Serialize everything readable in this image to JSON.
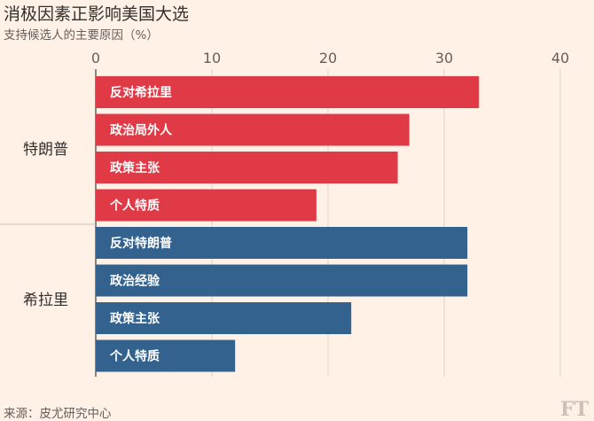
{
  "chart_data": {
    "type": "bar",
    "orientation": "horizontal",
    "title": "消极因素正影响美国大选",
    "subtitle": "支持候选人的主要原因（%）",
    "xlim": [
      0,
      40
    ],
    "x_ticks": [
      0,
      10,
      20,
      30,
      40
    ],
    "grid": true,
    "groups": [
      {
        "name": "特朗普",
        "color": "#e03a46",
        "bars": [
          {
            "label": "反对希拉里",
            "value": 33
          },
          {
            "label": "政治局外人",
            "value": 27
          },
          {
            "label": "政策主张",
            "value": 26
          },
          {
            "label": "个人特质",
            "value": 19
          }
        ]
      },
      {
        "name": "希拉里",
        "color": "#33628f",
        "bars": [
          {
            "label": "反对特朗普",
            "value": 32
          },
          {
            "label": "政治经验",
            "value": 32
          },
          {
            "label": "政策主张",
            "value": 22
          },
          {
            "label": "个人特质",
            "value": 12
          }
        ]
      }
    ],
    "source": "来源：皮尤研究中心",
    "logo": "FT"
  }
}
